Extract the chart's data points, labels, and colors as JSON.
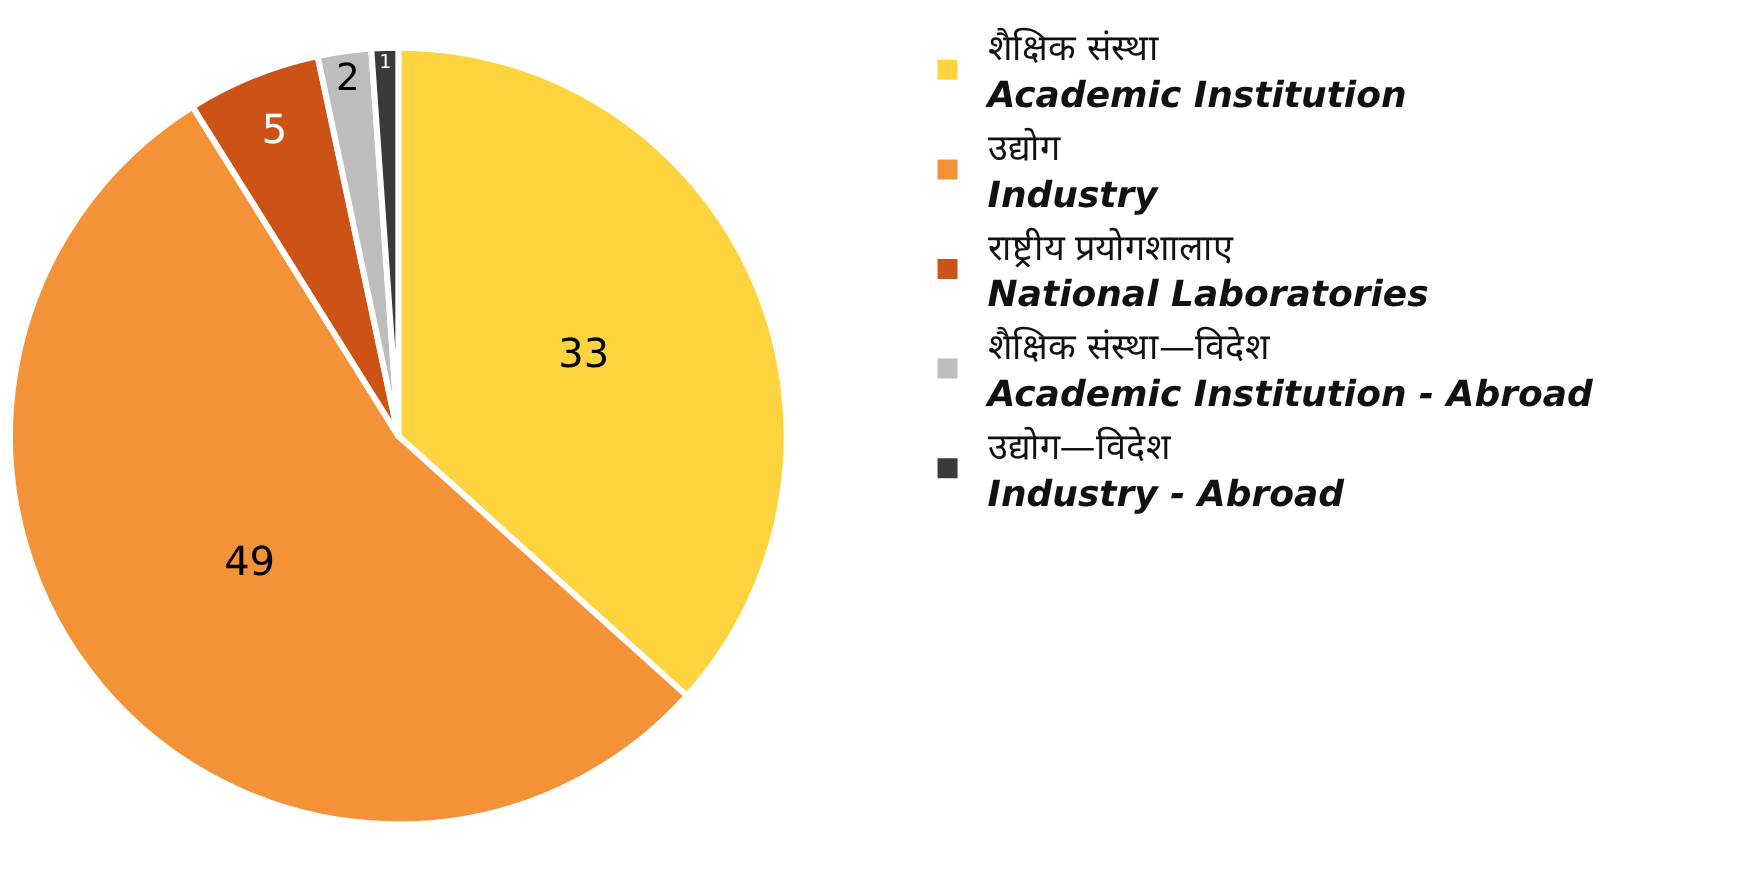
{
  "chart_data": {
    "type": "pie",
    "categories": [
      "शैक्षिक संस्था\nAcademic Institution",
      "उद्योग\nIndustry",
      "राष्ट्रीय प्रयोगशालाए\nNational Laboratories",
      "शैक्षिक संस्था—विदेश\nAcademic Institution - Abroad",
      "उद्योग—विदेश\nIndustry - Abroad"
    ],
    "values": [
      33,
      49,
      5,
      2,
      1
    ],
    "colors": [
      "#fdd43d",
      "#f39237",
      "#cd5216",
      "#bdbdbd",
      "#3a3a3a"
    ],
    "data_labels": true,
    "legend": "right"
  }
}
